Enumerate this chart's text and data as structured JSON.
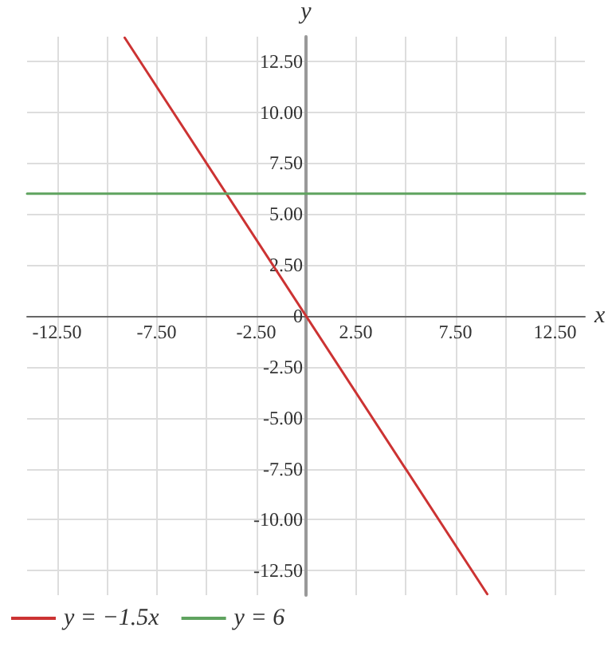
{
  "chart_data": {
    "type": "line",
    "xlabel": "x",
    "ylabel": "y",
    "xlim": [
      -14,
      14
    ],
    "ylim": [
      -13.7,
      13.7
    ],
    "xticks": [
      {
        "value": -12.5,
        "label": "-12.50"
      },
      {
        "value": -10,
        "label": null
      },
      {
        "value": -7.5,
        "label": "-7.50"
      },
      {
        "value": -5,
        "label": null
      },
      {
        "value": -2.5,
        "label": "-2.50"
      },
      {
        "value": 0,
        "label": null
      },
      {
        "value": 2.5,
        "label": "2.50"
      },
      {
        "value": 5,
        "label": null
      },
      {
        "value": 7.5,
        "label": "7.50"
      },
      {
        "value": 10,
        "label": null
      },
      {
        "value": 12.5,
        "label": "12.50"
      }
    ],
    "yticks": [
      {
        "value": -12.5,
        "label": "-12.50"
      },
      {
        "value": -10,
        "label": "-10.00"
      },
      {
        "value": -7.5,
        "label": "-7.50"
      },
      {
        "value": -5,
        "label": "-5.00"
      },
      {
        "value": -2.5,
        "label": "-2.50"
      },
      {
        "value": 0,
        "label": "0"
      },
      {
        "value": 2.5,
        "label": "2.50"
      },
      {
        "value": 5,
        "label": "5.00"
      },
      {
        "value": 7.5,
        "label": "7.50"
      },
      {
        "value": 10,
        "label": "10.00"
      },
      {
        "value": 12.5,
        "label": "12.50"
      }
    ],
    "series": [
      {
        "name": "y = −1.5x",
        "color": "#cc3333",
        "x": [
          -9.1,
          9.1
        ],
        "values": [
          13.65,
          -13.65
        ]
      },
      {
        "name": "y = 6",
        "color": "#5fa35f",
        "x": [
          -14,
          14
        ],
        "values": [
          6,
          6
        ]
      }
    ],
    "grid": true,
    "legend": "bottom left",
    "marker": "none",
    "line_style": "solid"
  }
}
